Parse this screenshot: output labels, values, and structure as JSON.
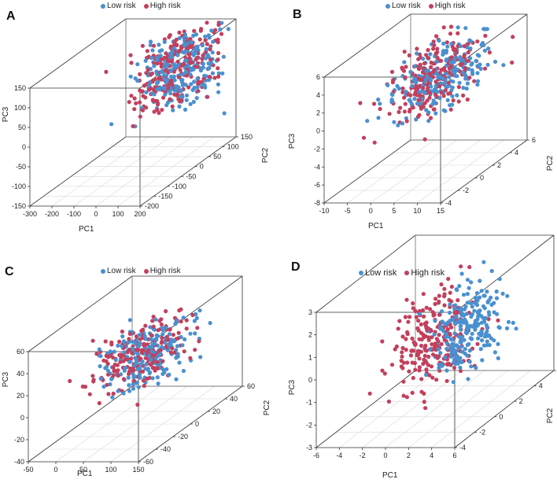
{
  "colors": {
    "low": "#4a90d0",
    "high": "#c2405c"
  },
  "chart_data": [
    {
      "panel": "A",
      "type": "scatter",
      "legend": [
        "Low risk",
        "High risk"
      ],
      "xlabel": "PC1",
      "ylabel": "PC2",
      "zlabel": "PC3",
      "xticks": [
        "-300",
        "-200",
        "-100",
        "0",
        "100",
        "200"
      ],
      "yticks": [
        "-200",
        "-150",
        "-100",
        "-50",
        "0",
        "50",
        "100",
        "150"
      ],
      "zticks": [
        "-150",
        "-100",
        "-50",
        "0",
        "50",
        "100",
        "150"
      ],
      "xlim": [
        -300,
        200
      ],
      "ylim": [
        -250,
        150
      ],
      "zlim": [
        -150,
        150
      ],
      "series": [
        {
          "name": "Low risk",
          "center": [
            100,
            20,
            85
          ],
          "spread": [
            60,
            70,
            45
          ],
          "n": 230
        },
        {
          "name": "High risk",
          "center": [
            70,
            10,
            80
          ],
          "spread": [
            70,
            75,
            45
          ],
          "n": 230
        }
      ]
    },
    {
      "panel": "B",
      "type": "scatter",
      "legend": [
        "Low risk",
        "High risk"
      ],
      "xlabel": "PC1",
      "ylabel": "PC2",
      "zlabel": "PC3",
      "xticks": [
        "-10",
        "-5",
        "0",
        "5",
        "10",
        "15"
      ],
      "yticks": [
        "-4",
        "-2",
        "0",
        "2",
        "4",
        "6"
      ],
      "zticks": [
        "-8",
        "-6",
        "-4",
        "-2",
        "0",
        "2",
        "4",
        "6"
      ],
      "xlim": [
        -10,
        15
      ],
      "ylim": [
        -6,
        6
      ],
      "zlim": [
        -8,
        6
      ],
      "series": [
        {
          "name": "Low risk",
          "center": [
            4,
            1,
            2
          ],
          "spread": [
            3.5,
            2.5,
            1.6
          ],
          "n": 230
        },
        {
          "name": "High risk",
          "center": [
            3,
            0.5,
            2
          ],
          "spread": [
            3.5,
            2.5,
            1.6
          ],
          "n": 230
        }
      ]
    },
    {
      "panel": "C",
      "type": "scatter",
      "legend": [
        "Low risk",
        "High risk"
      ],
      "xlabel": "PC1",
      "ylabel": "PC2",
      "zlabel": "PC3",
      "xticks": [
        "-50",
        "0",
        "50",
        "100",
        "150"
      ],
      "yticks": [
        "-60",
        "-40",
        "-20",
        "0",
        "20",
        "40",
        "60"
      ],
      "zticks": [
        "-40",
        "-20",
        "0",
        "20",
        "40",
        "60"
      ],
      "xlim": [
        -50,
        150
      ],
      "ylim": [
        -70,
        60
      ],
      "zlim": [
        -40,
        60
      ],
      "series": [
        {
          "name": "Low risk",
          "center": [
            70,
            0,
            22
          ],
          "spread": [
            30,
            22,
            12
          ],
          "n": 200
        },
        {
          "name": "High risk",
          "center": [
            60,
            -5,
            24
          ],
          "spread": [
            30,
            22,
            12
          ],
          "n": 200
        }
      ]
    },
    {
      "panel": "D",
      "type": "scatter",
      "legend": [
        "Low risk",
        "High risk"
      ],
      "xlabel": "PC1",
      "ylabel": "PC2",
      "zlabel": "PC3",
      "xticks": [
        "-6",
        "-4",
        "-2",
        "0",
        "2",
        "4",
        "6"
      ],
      "yticks": [
        "-4",
        "-2",
        "0",
        "2",
        "4",
        "6"
      ],
      "zticks": [
        "-3",
        "-2",
        "-1",
        "0",
        "1",
        "2",
        "3"
      ],
      "xlim": [
        -6,
        6
      ],
      "ylim": [
        -5,
        6
      ],
      "zlim": [
        -3,
        3
      ],
      "series": [
        {
          "name": "Low risk",
          "center": [
            2.8,
            0.5,
            0.7
          ],
          "spread": [
            1.1,
            1.6,
            0.9
          ],
          "n": 230
        },
        {
          "name": "High risk",
          "center": [
            0.3,
            0,
            0.1
          ],
          "spread": [
            1.3,
            1.8,
            1.0
          ],
          "n": 230
        }
      ]
    }
  ]
}
